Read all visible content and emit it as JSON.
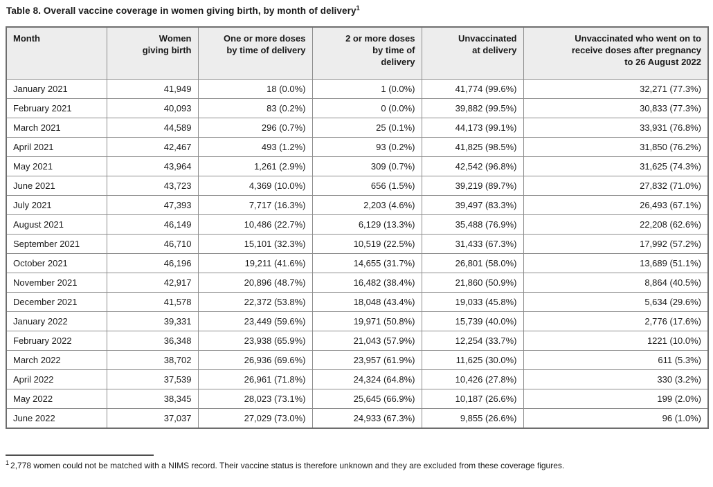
{
  "page": {
    "title": "Table 8. Overall vaccine coverage in women giving birth, by month of delivery",
    "title_superscript": "1"
  },
  "colors": {
    "header_bg": "#ededed",
    "border": "#8c8c8c",
    "outer_border": "#6e6e6e",
    "text": "#1a1a1a"
  },
  "table": {
    "columns": [
      {
        "id": "month",
        "lines": [
          "Month"
        ],
        "align": "left"
      },
      {
        "id": "women-giving-birth",
        "lines": [
          "Women",
          "giving birth"
        ],
        "align": "right"
      },
      {
        "id": "one-or-more-doses",
        "lines": [
          "One or more doses",
          "by time of delivery"
        ],
        "align": "right"
      },
      {
        "id": "two-or-more-doses",
        "lines": [
          "2 or more doses",
          "by time of",
          "delivery"
        ],
        "align": "right"
      },
      {
        "id": "unvaccinated-at-delivery",
        "lines": [
          "Unvaccinated",
          "at delivery"
        ],
        "align": "right"
      },
      {
        "id": "unvaccinated-later-doses",
        "lines": [
          "Unvaccinated who went on to",
          "receive doses after pregnancy",
          "to 26 August 2022"
        ],
        "align": "right"
      }
    ],
    "rows": [
      [
        "January 2021",
        "41,949",
        "18 (0.0%)",
        "1 (0.0%)",
        "41,774 (99.6%)",
        "32,271 (77.3%)"
      ],
      [
        "February 2021",
        "40,093",
        "83 (0.2%)",
        "0 (0.0%)",
        "39,882 (99.5%)",
        "30,833 (77.3%)"
      ],
      [
        "March 2021",
        "44,589",
        "296 (0.7%)",
        "25 (0.1%)",
        "44,173 (99.1%)",
        "33,931 (76.8%)"
      ],
      [
        "April 2021",
        "42,467",
        "493 (1.2%)",
        "93 (0.2%)",
        "41,825 (98.5%)",
        "31,850 (76.2%)"
      ],
      [
        "May 2021",
        "43,964",
        "1,261 (2.9%)",
        "309 (0.7%)",
        "42,542 (96.8%)",
        "31,625 (74.3%)"
      ],
      [
        "June 2021",
        "43,723",
        "4,369 (10.0%)",
        "656 (1.5%)",
        "39,219 (89.7%)",
        "27,832 (71.0%)"
      ],
      [
        "July 2021",
        "47,393",
        "7,717 (16.3%)",
        "2,203 (4.6%)",
        "39,497 (83.3%)",
        "26,493 (67.1%)"
      ],
      [
        "August 2021",
        "46,149",
        "10,486 (22.7%)",
        "6,129 (13.3%)",
        "35,488 (76.9%)",
        "22,208 (62.6%)"
      ],
      [
        "September 2021",
        "46,710",
        "15,101 (32.3%)",
        "10,519 (22.5%)",
        "31,433 (67.3%)",
        "17,992 (57.2%)"
      ],
      [
        "October 2021",
        "46,196",
        "19,211 (41.6%)",
        "14,655 (31.7%)",
        "26,801 (58.0%)",
        "13,689 (51.1%)"
      ],
      [
        "November 2021",
        "42,917",
        "20,896 (48.7%)",
        "16,482 (38.4%)",
        "21,860 (50.9%)",
        "8,864 (40.5%)"
      ],
      [
        "December 2021",
        "41,578",
        "22,372 (53.8%)",
        "18,048 (43.4%)",
        "19,033 (45.8%)",
        "5,634 (29.6%)"
      ],
      [
        "January 2022",
        "39,331",
        "23,449 (59.6%)",
        "19,971 (50.8%)",
        "15,739 (40.0%)",
        "2,776 (17.6%)"
      ],
      [
        "February 2022",
        "36,348",
        "23,938 (65.9%)",
        "21,043 (57.9%)",
        "12,254 (33.7%)",
        "1221 (10.0%)"
      ],
      [
        "March 2022",
        "38,702",
        "26,936 (69.6%)",
        "23,957 (61.9%)",
        "11,625 (30.0%)",
        "611 (5.3%)"
      ],
      [
        "April 2022",
        "37,539",
        "26,961 (71.8%)",
        "24,324 (64.8%)",
        "10,426 (27.8%)",
        "330 (3.2%)"
      ],
      [
        "May 2022",
        "38,345",
        "28,023 (73.1%)",
        "25,645 (66.9%)",
        "10,187 (26.6%)",
        "199 (2.0%)"
      ],
      [
        "June 2022",
        "37,037",
        "27,029 (73.0%)",
        "24,933 (67.3%)",
        "9,855 (26.6%)",
        "96 (1.0%)"
      ]
    ]
  },
  "footnote": {
    "marker": "1",
    "text": "2,778 women could not be matched with a NIMS record. Their vaccine status is therefore unknown and they are excluded from these coverage figures."
  }
}
